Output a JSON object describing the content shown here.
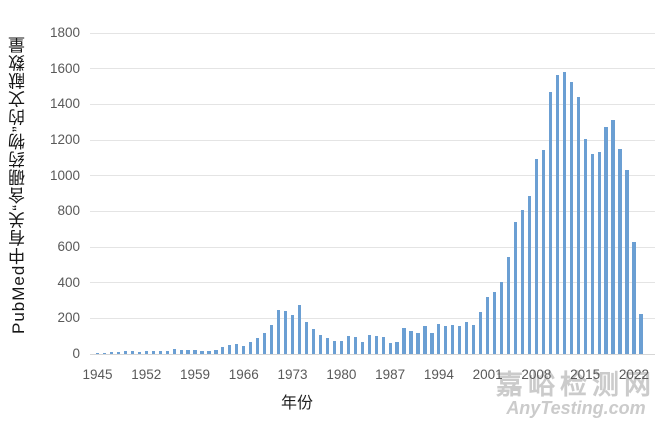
{
  "chart_data": {
    "type": "bar",
    "title": "",
    "xlabel": "年份",
    "ylabel": "PubMed中有关“含硼药物”的文献数量",
    "x": [
      1945,
      1946,
      1947,
      1948,
      1949,
      1950,
      1951,
      1952,
      1953,
      1954,
      1955,
      1956,
      1957,
      1958,
      1959,
      1960,
      1961,
      1962,
      1963,
      1964,
      1965,
      1966,
      1967,
      1968,
      1969,
      1970,
      1971,
      1972,
      1973,
      1974,
      1975,
      1976,
      1977,
      1978,
      1979,
      1980,
      1981,
      1982,
      1983,
      1984,
      1985,
      1986,
      1987,
      1988,
      1989,
      1990,
      1991,
      1992,
      1993,
      1994,
      1995,
      1996,
      1997,
      1998,
      1999,
      2000,
      2001,
      2002,
      2003,
      2004,
      2005,
      2006,
      2007,
      2008,
      2009,
      2010,
      2011,
      2012,
      2013,
      2014,
      2015,
      2016,
      2017,
      2018,
      2019,
      2020,
      2021,
      2022,
      2023
    ],
    "values": [
      3,
      6,
      9,
      14,
      15,
      15,
      14,
      15,
      15,
      17,
      19,
      26,
      22,
      22,
      24,
      16,
      18,
      20,
      39,
      50,
      54,
      43,
      68,
      90,
      120,
      160,
      247,
      241,
      220,
      277,
      180,
      140,
      107,
      90,
      73,
      74,
      101,
      97,
      67,
      105,
      101,
      93,
      64,
      69,
      148,
      129,
      120,
      155,
      120,
      170,
      159,
      165,
      159,
      178,
      163,
      233,
      318,
      346,
      403,
      544,
      742,
      808,
      887,
      1094,
      1145,
      1470,
      1565,
      1580,
      1524,
      1443,
      1205,
      1124,
      1130,
      1275,
      1310,
      1152,
      1034,
      629,
      224
    ],
    "ylim": [
      0,
      1800
    ],
    "yticks": [
      0,
      200,
      400,
      600,
      800,
      1000,
      1200,
      1400,
      1600,
      1800
    ],
    "xticks": [
      1945,
      1952,
      1959,
      1966,
      1973,
      1980,
      1987,
      1994,
      2001,
      2008,
      2015,
      2022
    ],
    "grid": true,
    "legend_position": "none",
    "bar_color": "#6b9fd3",
    "gridline_color": "#e4e4e4",
    "baseline_color": "#d6d6d6",
    "tick_label_color": "#595959"
  },
  "watermark": {
    "line1": "嘉峪检测网",
    "line2": "AnyTesting.com"
  }
}
